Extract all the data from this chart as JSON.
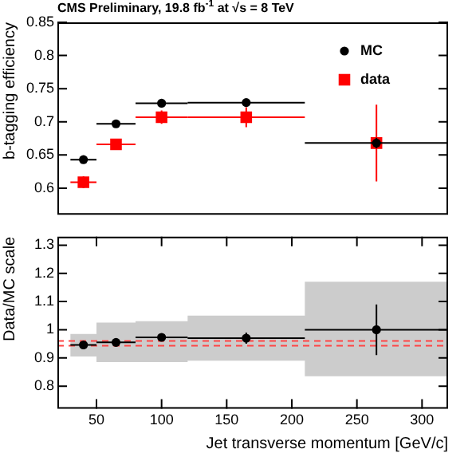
{
  "chart_data": [
    {
      "type": "scatter",
      "title": "CMS Preliminary, 19.8 fb$^{-1}$ at √s = 8 TeV",
      "ylabel": "b-tagging efficiency",
      "xlim": [
        20,
        320
      ],
      "ylim": [
        0.56,
        0.85
      ],
      "yticks": [
        0.6,
        0.65,
        0.7,
        0.75,
        0.8,
        0.85
      ],
      "tick_labels": "y",
      "legend": "top right",
      "grid": false,
      "series": [
        {
          "name": "MC",
          "color": "#000000",
          "marker": "circle",
          "x": [
            40,
            65,
            100,
            165,
            265
          ],
          "values": [
            0.643,
            0.697,
            0.728,
            0.729,
            0.668
          ],
          "errors": [
            0.003,
            0.003,
            0.003,
            0.003,
            0.008
          ],
          "xerrors": [
            10,
            15,
            20,
            45,
            55
          ]
        },
        {
          "name": "data",
          "color": "#ff0000",
          "marker": "square",
          "x": [
            40,
            65,
            100,
            165,
            265
          ],
          "values": [
            0.609,
            0.666,
            0.707,
            0.707,
            0.668
          ],
          "errors": [
            0.009,
            0.008,
            0.01,
            0.015,
            0.058
          ],
          "xerrors": [
            10,
            15,
            20,
            45,
            null
          ]
        }
      ]
    },
    {
      "type": "scatter",
      "xlabel": "Jet transverse momentum [GeV/c]",
      "ylabel": "Data/MC scale",
      "xlim": [
        20,
        320
      ],
      "ylim": [
        0.72,
        1.33
      ],
      "xticks": [
        50,
        100,
        150,
        200,
        250,
        300
      ],
      "yticks": [
        0.8,
        0.9,
        1,
        1.1,
        1.2,
        1.3
      ],
      "grid": false,
      "ref_lines": [
        {
          "axis": "y",
          "value": 0.943,
          "color": "#ff4444",
          "line_style": "dashed"
        },
        {
          "axis": "y",
          "value": 0.96,
          "color": "#ff4444",
          "line_style": "dashed"
        }
      ],
      "series": [
        {
          "type": "step",
          "color": "#cccccc",
          "x": [
            30,
            50,
            80,
            120,
            210,
            320
          ],
          "values": [
            null,
            null,
            null,
            null,
            null,
            null
          ],
          "lower": [
            0.905,
            0.885,
            0.885,
            0.89,
            0.835,
            0.835
          ],
          "upper": [
            0.985,
            1.025,
            1.03,
            1.05,
            1.17,
            1.17
          ]
        },
        {
          "type": "scatter",
          "color": "#000000",
          "marker": "circle",
          "x": [
            40,
            65,
            100,
            165,
            265
          ],
          "values": [
            0.946,
            0.955,
            0.973,
            0.97,
            1.0
          ],
          "errors": [
            0.01,
            0.007,
            0.01,
            0.02,
            0.09
          ],
          "xerrors": [
            10,
            15,
            20,
            45,
            55
          ]
        }
      ]
    }
  ]
}
